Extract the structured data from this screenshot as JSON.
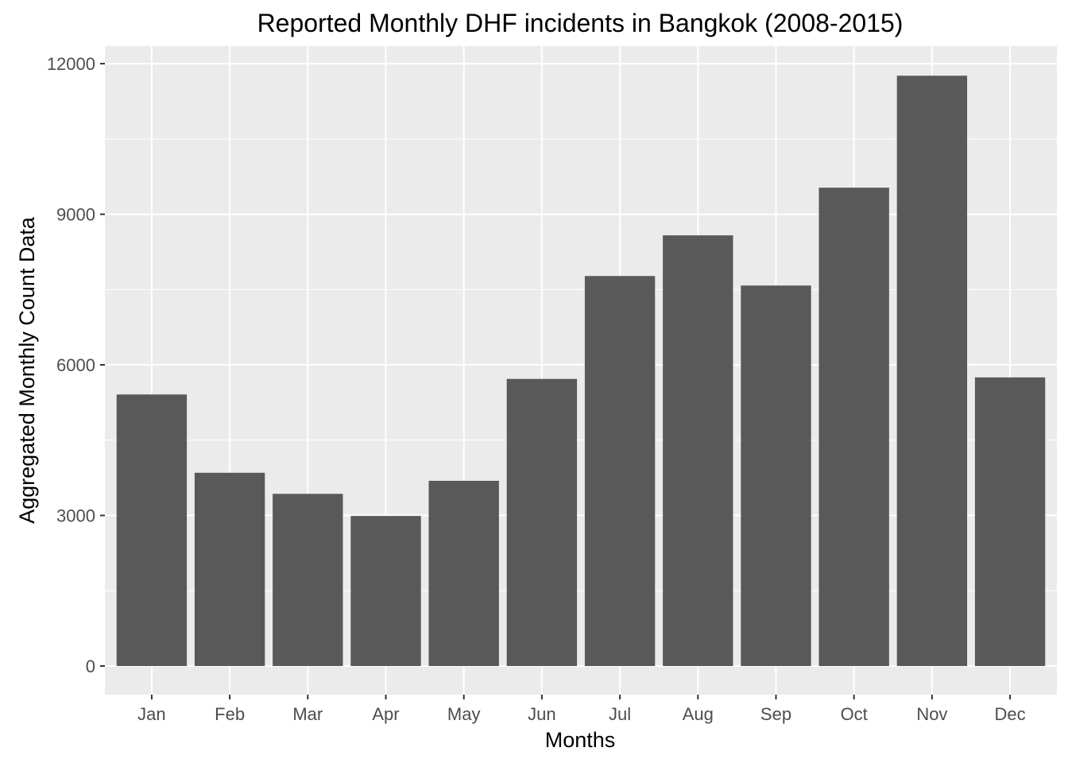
{
  "chart_data": {
    "type": "bar",
    "title": "Reported Monthly DHF incidents in Bangkok (2008-2015)",
    "xlabel": "Months",
    "ylabel": "Aggregated Monthly Count Data",
    "categories": [
      "Jan",
      "Feb",
      "Mar",
      "Apr",
      "May",
      "Jun",
      "Jul",
      "Aug",
      "Sep",
      "Oct",
      "Nov",
      "Dec"
    ],
    "values": [
      5410,
      3850,
      3430,
      2990,
      3690,
      5720,
      7770,
      8580,
      7580,
      9530,
      11760,
      5750
    ],
    "ylim": [
      -570,
      12350
    ],
    "yticks": [
      0,
      3000,
      6000,
      9000,
      12000
    ],
    "ytick_labels": [
      "0",
      "3000",
      "6000",
      "9000",
      "12000"
    ],
    "grid": true,
    "colors": {
      "bar": "#595959",
      "panel": "#EBEBEB",
      "grid": "#FFFFFF"
    }
  }
}
